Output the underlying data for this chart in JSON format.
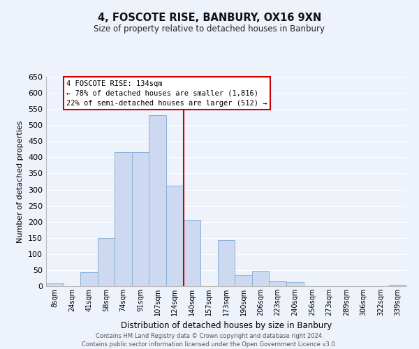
{
  "title": "4, FOSCOTE RISE, BANBURY, OX16 9XN",
  "subtitle": "Size of property relative to detached houses in Banbury",
  "xlabel": "Distribution of detached houses by size in Banbury",
  "ylabel": "Number of detached properties",
  "bar_labels": [
    "8sqm",
    "24sqm",
    "41sqm",
    "58sqm",
    "74sqm",
    "91sqm",
    "107sqm",
    "124sqm",
    "140sqm",
    "157sqm",
    "173sqm",
    "190sqm",
    "206sqm",
    "223sqm",
    "240sqm",
    "256sqm",
    "273sqm",
    "289sqm",
    "306sqm",
    "322sqm",
    "339sqm"
  ],
  "bar_heights": [
    8,
    0,
    44,
    150,
    416,
    416,
    530,
    312,
    205,
    0,
    143,
    35,
    48,
    15,
    13,
    0,
    0,
    0,
    0,
    0,
    5
  ],
  "bar_color": "#ccd9f0",
  "bar_edge_color": "#8ab0d8",
  "vline_x": 7.5,
  "vline_color": "#cc0000",
  "annotation_title": "4 FOSCOTE RISE: 134sqm",
  "annotation_line1": "← 78% of detached houses are smaller (1,816)",
  "annotation_line2": "22% of semi-detached houses are larger (512) →",
  "annotation_box_facecolor": "#ffffff",
  "annotation_box_edgecolor": "#cc0000",
  "ylim": [
    0,
    650
  ],
  "yticks": [
    0,
    50,
    100,
    150,
    200,
    250,
    300,
    350,
    400,
    450,
    500,
    550,
    600,
    650
  ],
  "background_color": "#eef2fa",
  "grid_color": "#ffffff",
  "footer1": "Contains HM Land Registry data © Crown copyright and database right 2024.",
  "footer2": "Contains public sector information licensed under the Open Government Licence v3.0."
}
